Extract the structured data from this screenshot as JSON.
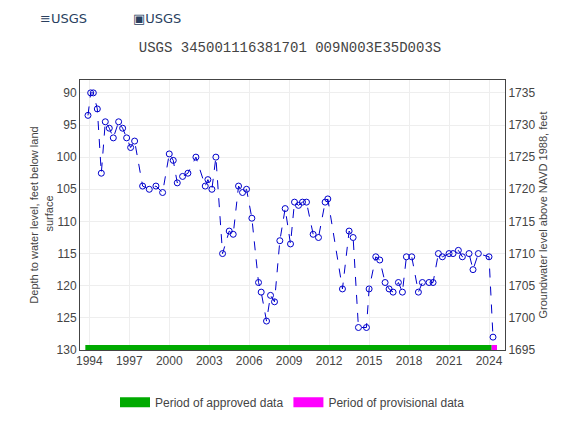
{
  "chart_data": {
    "type": "line",
    "title": "USGS 345001116381701 009N003E35D003S",
    "annotations": [
      {
        "text": "≡USGS"
      },
      {
        "text": "▣USGS"
      }
    ],
    "ylabel": "Depth to water level, feet below land\n surface",
    "y2label": "Groundwater level above NAVD 1988, feet",
    "xlim": [
      1993.3,
      2025.2
    ],
    "xticks": [
      1994,
      1997,
      2000,
      2003,
      2006,
      2009,
      2012,
      2015,
      2018,
      2021,
      2024
    ],
    "ylim": [
      130,
      88
    ],
    "yticks": [
      90,
      95,
      100,
      105,
      110,
      115,
      120,
      125,
      130
    ],
    "y2lim": [
      1695,
      1737
    ],
    "y2ticks": [
      1695,
      1700,
      1705,
      1710,
      1715,
      1720,
      1725,
      1730,
      1735
    ],
    "grid": true,
    "x": [
      1993.9,
      1994.1,
      1994.3,
      1994.6,
      1994.9,
      1995.2,
      1995.5,
      1995.8,
      1996.2,
      1996.5,
      1996.8,
      1997.1,
      1997.4,
      1998.0,
      1998.5,
      1999.0,
      1999.5,
      2000.0,
      2000.3,
      2000.6,
      2001.0,
      2001.4,
      2002.0,
      2002.7,
      2002.9,
      2003.2,
      2003.5,
      2004.0,
      2004.5,
      2004.8,
      2005.2,
      2005.5,
      2005.8,
      2006.2,
      2006.7,
      2006.9,
      2007.3,
      2007.6,
      2007.9,
      2008.3,
      2008.7,
      2009.1,
      2009.4,
      2009.7,
      2010.0,
      2010.3,
      2010.8,
      2011.2,
      2011.7,
      2011.9,
      2013.0,
      2013.5,
      2013.8,
      2014.2,
      2014.8,
      2015.0,
      2015.5,
      2015.8,
      2016.2,
      2016.5,
      2016.8,
      2017.2,
      2017.5,
      2017.8,
      2018.2,
      2018.7,
      2019.0,
      2019.5,
      2019.8,
      2020.2,
      2020.5,
      2021.0,
      2021.3,
      2021.7,
      2022.0,
      2022.5,
      2022.8,
      2023.2,
      2024.0,
      2024.3
    ],
    "series": [
      {
        "type": "line",
        "color": "#0000cc",
        "marker": "circle-open",
        "line_style": "dash",
        "values": [
          93.5,
          90.0,
          90.0,
          92.5,
          102.5,
          94.5,
          95.5,
          97.0,
          94.5,
          95.5,
          97.0,
          98.5,
          97.5,
          104.5,
          105.0,
          104.5,
          105.5,
          99.5,
          100.5,
          104.0,
          103.0,
          102.5,
          100.0,
          104.5,
          103.5,
          105.0,
          100.0,
          115.0,
          111.5,
          112.0,
          104.5,
          105.5,
          105.0,
          109.5,
          119.5,
          121.0,
          125.5,
          121.5,
          122.5,
          113.0,
          108.0,
          113.5,
          107.0,
          107.5,
          107.0,
          107.0,
          112.0,
          112.5,
          107.0,
          106.5,
          120.5,
          111.5,
          112.5,
          126.5,
          126.5,
          120.5,
          115.5,
          116.0,
          119.5,
          120.5,
          121.0,
          119.5,
          121.0,
          115.5,
          115.5,
          121.0,
          119.5,
          119.5,
          119.5,
          115.0,
          115.5,
          115.0,
          115.0,
          114.5,
          115.5,
          115.0,
          117.5,
          115.0,
          115.5,
          128.0
        ]
      },
      {
        "type": "band",
        "name": "Period of approved data",
        "color": "#00aa00",
        "x": [
          1993.7,
          2024.2
        ]
      },
      {
        "type": "band",
        "name": "Period of provisional data",
        "color": "#ff00ff",
        "x": [
          2024.2,
          2024.6
        ]
      }
    ]
  }
}
